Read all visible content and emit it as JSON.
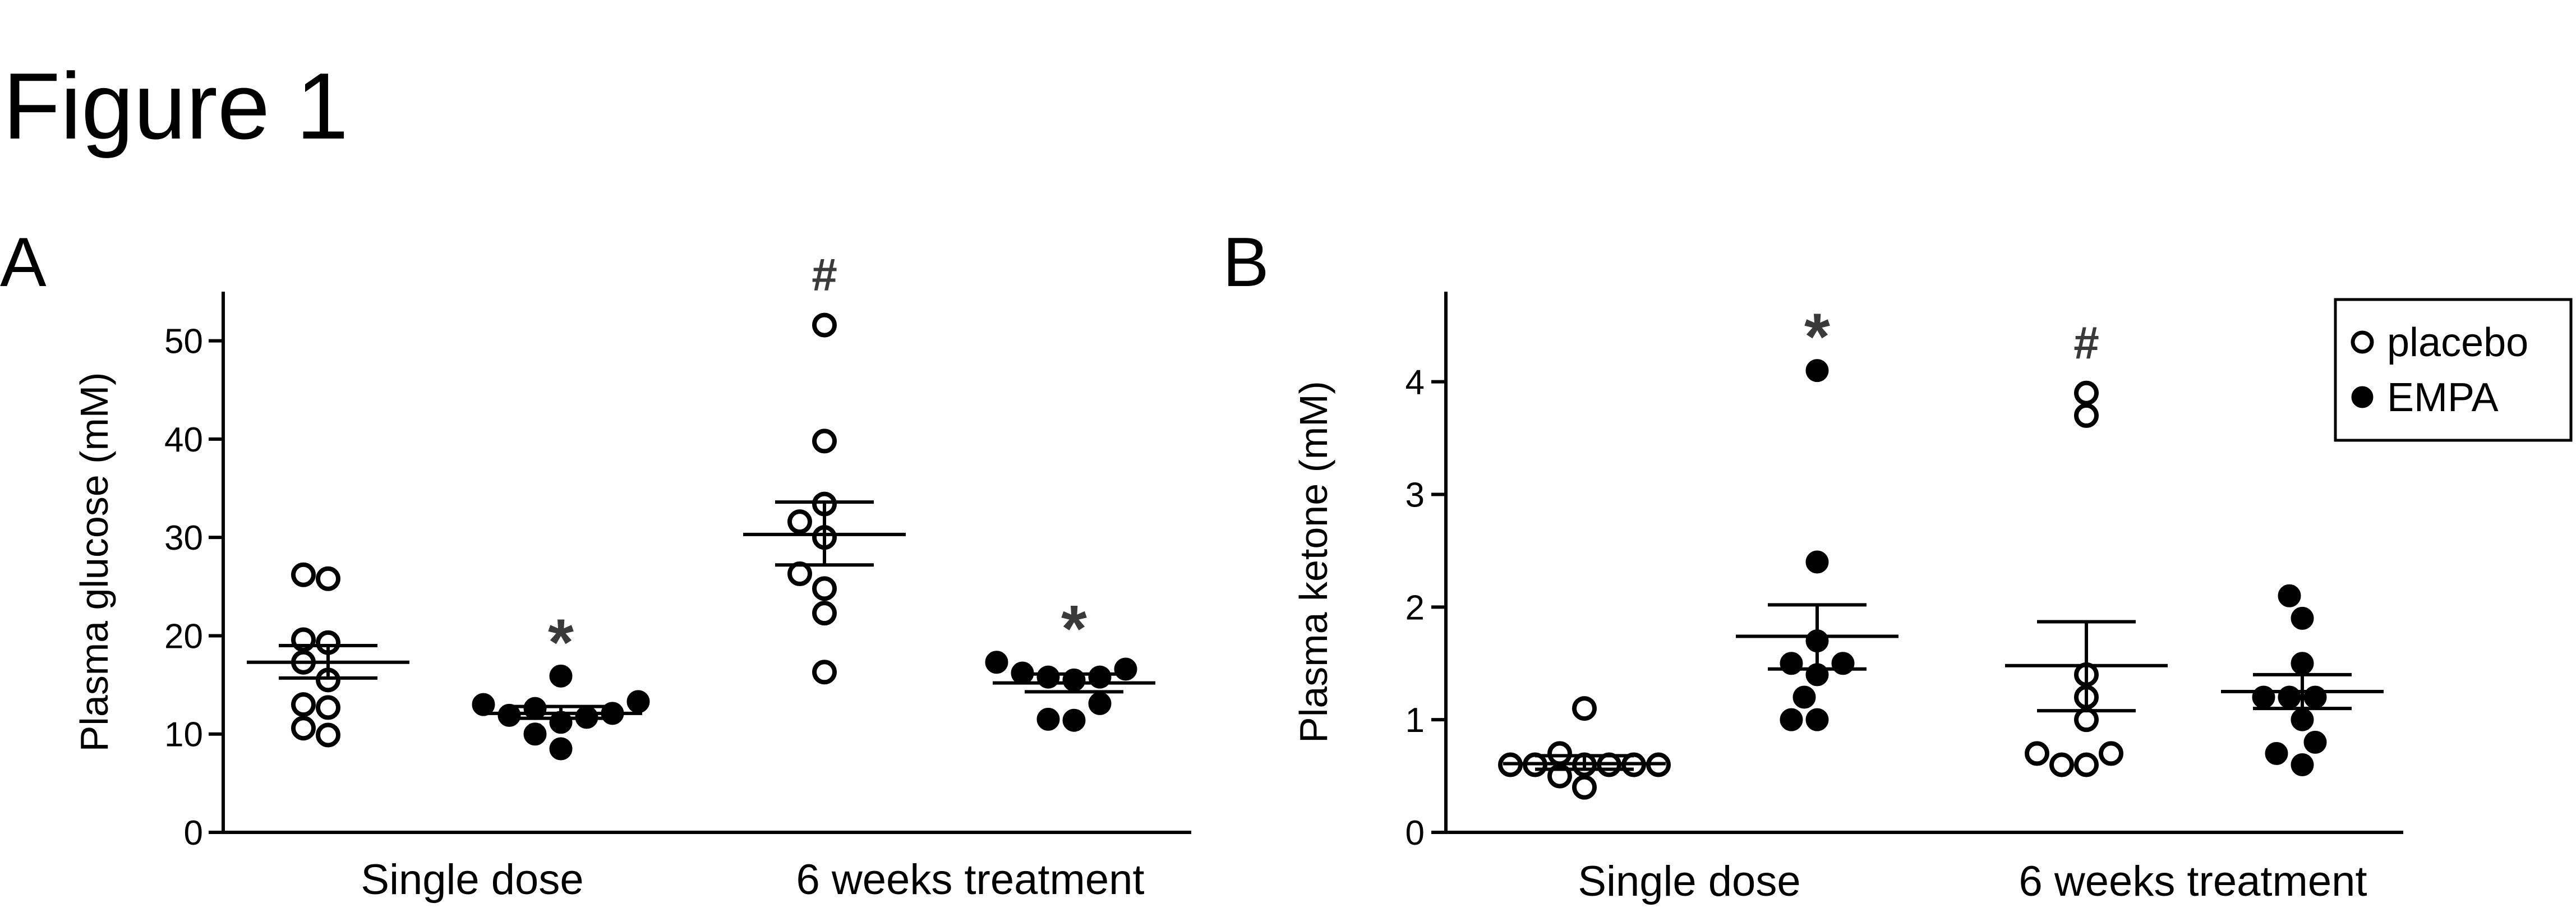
{
  "figure": {
    "title": "Figure 1"
  },
  "colors": {
    "ink": "#000000",
    "marker_fill_open": "#ffffff",
    "significance": "#3a3a3a",
    "background": "#ffffff"
  },
  "chart_data": [
    {
      "type": "scatter",
      "panel_label": "A",
      "title": "",
      "xlabel": "",
      "ylabel": "Plasma glucose (mM)",
      "ylim": [
        0,
        55
      ],
      "yticks": [
        0,
        10,
        20,
        30,
        40,
        50
      ],
      "grid": false,
      "groups": [
        {
          "name": "Single dose",
          "series": [
            {
              "name": "placebo",
              "values": [
                26.2,
                25.8,
                19.6,
                19.3,
                17.3,
                15.5,
                13.0,
                12.7,
                10.6,
                9.9
              ],
              "mean": 17.3,
              "sem_low": 15.7,
              "sem_high": 19.0,
              "annotation": ""
            },
            {
              "name": "EMPA",
              "values": [
                15.9,
                13.3,
                13.0,
                12.6,
                12.1,
                11.9,
                11.7,
                11.2,
                10.0,
                8.5
              ],
              "mean": 12.1,
              "sem_low": 11.6,
              "sem_high": 12.8,
              "annotation": "*"
            }
          ]
        },
        {
          "name": "6 weeks treatment",
          "series": [
            {
              "name": "placebo",
              "values": [
                51.6,
                39.8,
                33.4,
                31.6,
                30.0,
                26.3,
                24.8,
                22.3,
                16.3
              ],
              "mean": 30.3,
              "sem_low": 27.2,
              "sem_high": 33.6,
              "annotation": "#"
            },
            {
              "name": "EMPA",
              "values": [
                17.3,
                16.6,
                16.2,
                15.8,
                15.8,
                15.5,
                13.1,
                11.5,
                11.4
              ],
              "mean": 15.2,
              "sem_low": 14.3,
              "sem_high": 16.1,
              "annotation": "*"
            }
          ]
        }
      ]
    },
    {
      "type": "scatter",
      "panel_label": "B",
      "title": "",
      "xlabel": "",
      "ylabel": "Plasma ketone (mM)",
      "ylim": [
        0,
        4.8
      ],
      "yticks": [
        0,
        1,
        2,
        3,
        4
      ],
      "grid": false,
      "legend": {
        "position": "top-right",
        "entries": [
          "placebo",
          "EMPA"
        ]
      },
      "groups": [
        {
          "name": "Single dose",
          "series": [
            {
              "name": "placebo",
              "values": [
                1.1,
                0.7,
                0.6,
                0.6,
                0.6,
                0.6,
                0.6,
                0.6,
                0.5,
                0.4
              ],
              "mean": 0.61,
              "sem_low": 0.56,
              "sem_high": 0.68,
              "annotation": ""
            },
            {
              "name": "EMPA",
              "values": [
                4.1,
                2.4,
                1.7,
                1.5,
                1.5,
                1.4,
                1.2,
                1.0,
                1.0
              ],
              "mean": 1.74,
              "sem_low": 1.45,
              "sem_high": 2.02,
              "annotation": "*"
            }
          ]
        },
        {
          "name": "6 weeks treatment",
          "series": [
            {
              "name": "placebo",
              "values": [
                3.9,
                3.7,
                1.4,
                1.2,
                1.0,
                0.7,
                0.7,
                0.6,
                0.6
              ],
              "mean": 1.48,
              "sem_low": 1.08,
              "sem_high": 1.87,
              "annotation": "#"
            },
            {
              "name": "EMPA",
              "values": [
                2.1,
                1.9,
                1.5,
                1.2,
                1.2,
                1.2,
                1.0,
                0.8,
                0.7,
                0.6
              ],
              "mean": 1.25,
              "sem_low": 1.1,
              "sem_high": 1.4,
              "annotation": ""
            }
          ]
        }
      ]
    }
  ]
}
